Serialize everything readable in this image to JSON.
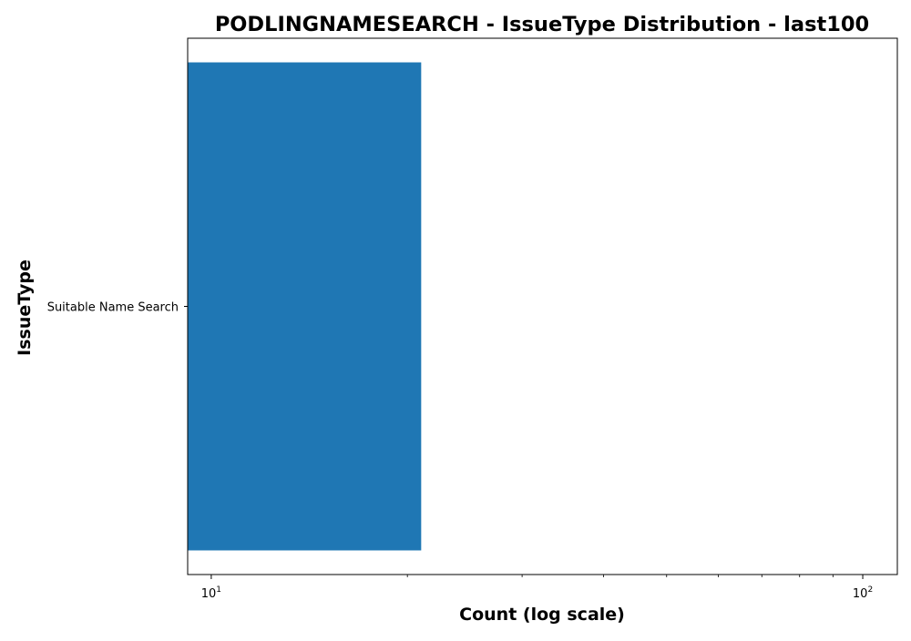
{
  "chart_data": {
    "type": "bar",
    "orientation": "horizontal",
    "title": "PODLINGNAMESEARCH - IssueType Distribution - last100",
    "xlabel": "Count (log scale)",
    "ylabel": "IssueType",
    "x_scale": "log",
    "xlim": [
      9.2,
      113
    ],
    "categories": [
      "Suitable Name Search"
    ],
    "values": [
      21
    ],
    "major_ticks": [
      {
        "value": 10,
        "base": "10",
        "exp": "1"
      },
      {
        "value": 100,
        "base": "10",
        "exp": "2"
      }
    ],
    "minor_ticks": [
      20,
      30,
      40,
      50,
      60,
      70,
      80,
      90
    ],
    "bar_color": "#1f77b4",
    "grid": false,
    "legend": "none"
  }
}
